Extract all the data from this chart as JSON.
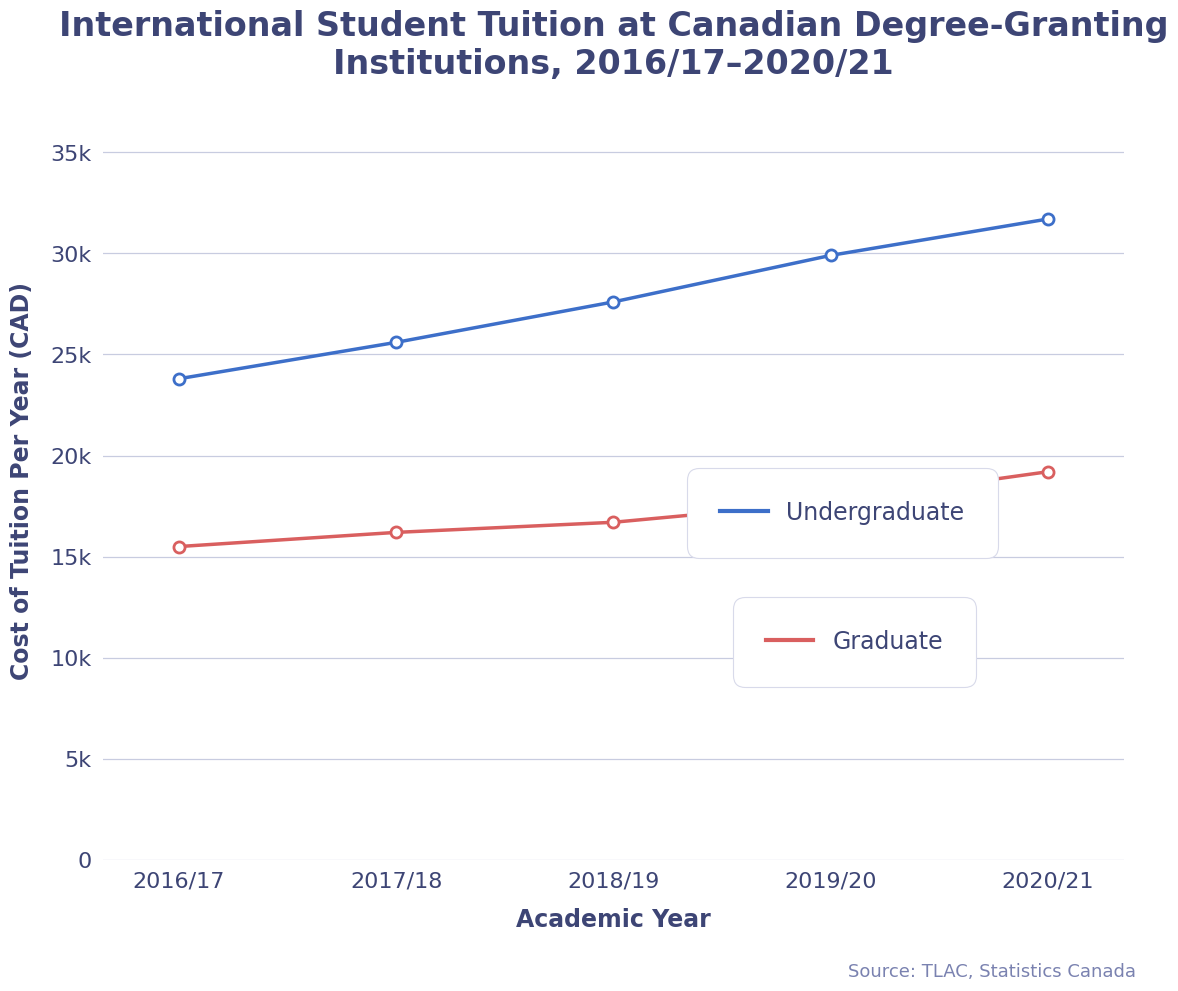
{
  "title": "International Student Tuition at Canadian Degree-Granting\nInstitutions, 2016/17–2020/21",
  "xlabel": "Academic Year",
  "ylabel": "Cost of Tuition Per Year (CAD)",
  "x_labels": [
    "2016/17",
    "2017/18",
    "2018/19",
    "2019/20",
    "2020/21"
  ],
  "undergraduate": [
    23800,
    25600,
    27600,
    29900,
    31700
  ],
  "graduate": [
    15500,
    16200,
    16700,
    17700,
    19200
  ],
  "undergrad_color": "#3d6fc9",
  "grad_color": "#d95f5f",
  "background_color": "#ffffff",
  "grid_color": "#c8cce0",
  "text_color": "#3d4575",
  "source_color": "#7a82b0",
  "ylim": [
    0,
    37500
  ],
  "yticks": [
    0,
    5000,
    10000,
    15000,
    20000,
    25000,
    30000,
    35000
  ],
  "ytick_labels": [
    "0",
    "5k",
    "10k",
    "15k",
    "20k",
    "25k",
    "30k",
    "35k"
  ],
  "title_fontsize": 24,
  "axis_label_fontsize": 17,
  "tick_fontsize": 16,
  "legend_fontsize": 17,
  "source_fontsize": 13
}
